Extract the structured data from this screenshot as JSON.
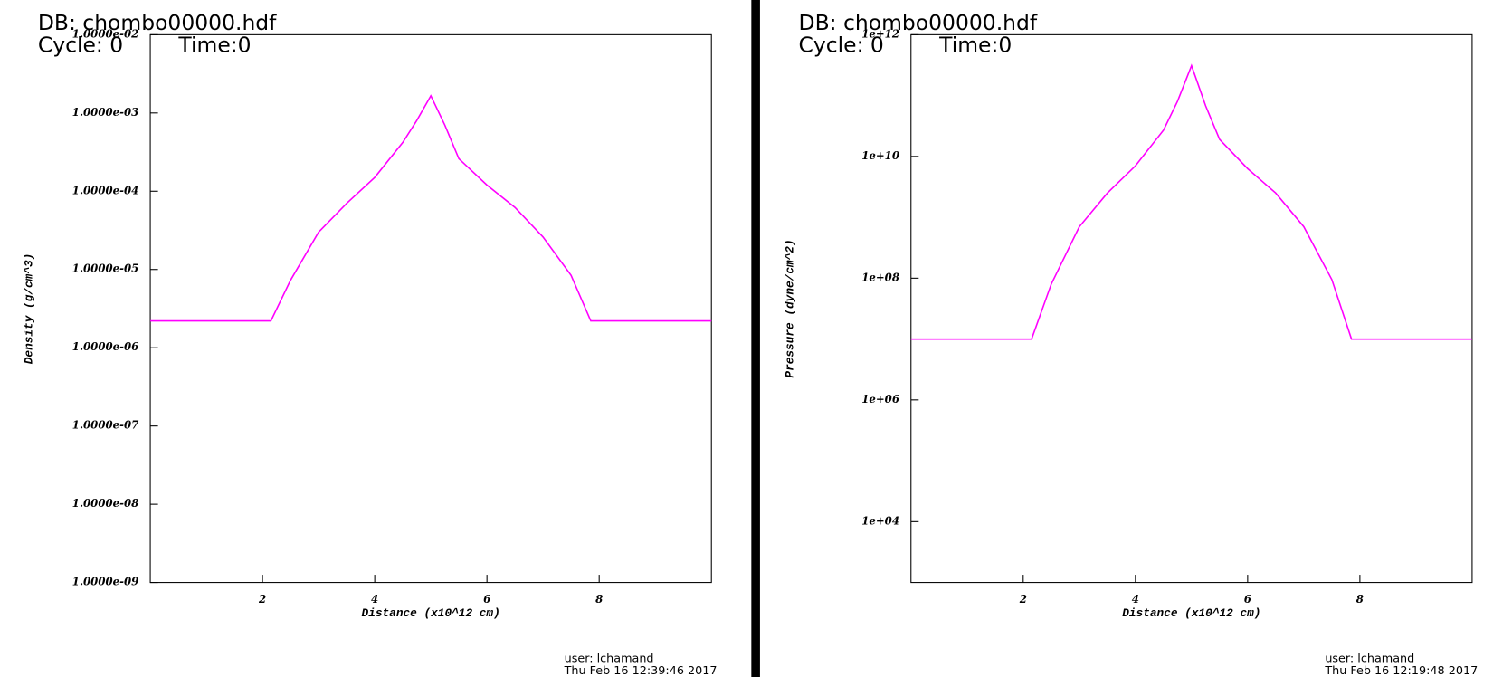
{
  "chart_data": [
    {
      "type": "line",
      "log_y": true,
      "db_label": "DB: chombo00000.hdf",
      "cycle_label": "Cycle: 0",
      "time_label": "Time:0",
      "xlabel": "Distance (x10^12 cm)",
      "ylabel": "Density (g/cm^3)",
      "user_label": "user: lchamand",
      "timestamp": "Thu Feb 16 12:39:46 2017",
      "xlim": [
        0,
        10
      ],
      "xticks": [
        2,
        4,
        6,
        8
      ],
      "ylim": [
        1e-09,
        0.01
      ],
      "yticks": [
        {
          "value": 1e-09,
          "label": "1.0000e-09"
        },
        {
          "value": 1e-08,
          "label": "1.0000e-08"
        },
        {
          "value": 1e-07,
          "label": "1.0000e-07"
        },
        {
          "value": 1e-06,
          "label": "1.0000e-06"
        },
        {
          "value": 1e-05,
          "label": "1.0000e-05"
        },
        {
          "value": 0.0001,
          "label": "1.0000e-04"
        },
        {
          "value": 0.001,
          "label": "1.0000e-03"
        },
        {
          "value": 0.01,
          "label": "1.0000e-02"
        }
      ],
      "x": [
        0,
        2.15,
        2.5,
        3,
        3.5,
        4,
        4.5,
        4.75,
        5,
        5.25,
        5.5,
        6,
        6.5,
        7,
        7.5,
        7.85,
        10
      ],
      "series": [
        {
          "color": "#ff00ff",
          "values": [
            2.2e-06,
            2.2e-06,
            7.3e-06,
            3e-05,
            7e-05,
            0.00015,
            0.00042,
            0.0008,
            0.00166,
            0.0007,
            0.00026,
            0.00012,
            6.2e-05,
            2.6e-05,
            8.4e-06,
            2.2e-06,
            2.2e-06
          ]
        }
      ]
    },
    {
      "type": "line",
      "log_y": true,
      "db_label": "DB: chombo00000.hdf",
      "cycle_label": "Cycle: 0",
      "time_label": "Time:0",
      "xlabel": "Distance (x10^12 cm)",
      "ylabel": "Pressure (dyne/cm^2)",
      "user_label": "user: lchamand",
      "timestamp": "Thu Feb 16 12:19:48 2017",
      "xlim": [
        0,
        10
      ],
      "xticks": [
        2,
        4,
        6,
        8
      ],
      "ylim": [
        1000,
        1000000000000.0
      ],
      "yticks": [
        {
          "value": 10000.0,
          "label": "1e+04"
        },
        {
          "value": 1000000.0,
          "label": "1e+06"
        },
        {
          "value": 100000000.0,
          "label": "1e+08"
        },
        {
          "value": 10000000000.0,
          "label": "1e+10"
        },
        {
          "value": 1000000000000.0,
          "label": "1e+12"
        }
      ],
      "x": [
        0,
        2.15,
        2.5,
        3,
        3.5,
        4,
        4.5,
        4.75,
        5,
        5.25,
        5.5,
        6,
        6.5,
        7,
        7.5,
        7.85,
        10
      ],
      "series": [
        {
          "color": "#ff00ff",
          "values": [
            10000000.0,
            10000000.0,
            80000000.0,
            700000000.0,
            2500000000.0,
            7000000000.0,
            27000000000.0,
            80000000000.0,
            310000000000.0,
            68000000000.0,
            19000000000.0,
            6300000000.0,
            2500000000.0,
            700000000.0,
            95000000.0,
            10000000.0,
            10000000.0
          ]
        }
      ]
    }
  ]
}
